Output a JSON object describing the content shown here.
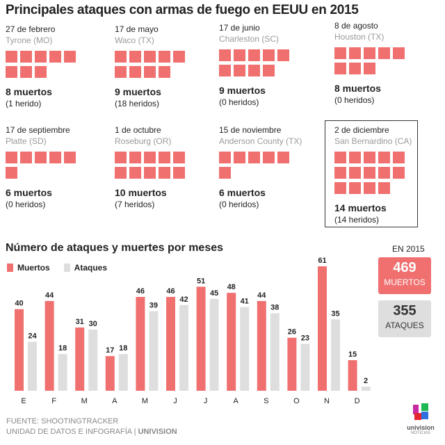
{
  "title": "Principales ataques con armas de fuego en EEUU en 2015",
  "incidents": [
    {
      "date": "27 de febrero",
      "place": "Tyrone (MO)",
      "deaths": 8,
      "deaths_label": "8 muertos",
      "injured_label": "(1 herido)"
    },
    {
      "date": "17 de mayo",
      "place": "Waco (TX)",
      "deaths": 9,
      "deaths_label": "9 muertos",
      "injured_label": "(18 heridos)"
    },
    {
      "date": "17 de junio",
      "place": "Charleston (SC)",
      "deaths": 9,
      "deaths_label": "9 muertos",
      "injured_label": "(0 heridos)"
    },
    {
      "date": "8 de agosto",
      "place": "Houston (TX)",
      "deaths": 8,
      "deaths_label": "8 muertos",
      "injured_label": "(0 heridos)"
    },
    {
      "date": "17 de septiembre",
      "place": "Platte (SD)",
      "deaths": 6,
      "deaths_label": "6 muertos",
      "injured_label": "(0 heridos)"
    },
    {
      "date": "1 de octubre",
      "place": "Roseburg (OR)",
      "deaths": 10,
      "deaths_label": "10 muertos",
      "injured_label": "(7 heridos)"
    },
    {
      "date": "15 de noviembre",
      "place": "Anderson County (TX)",
      "deaths": 6,
      "deaths_label": "6 muertos",
      "injured_label": "(0 heridos)"
    },
    {
      "date": "2 de diciembre",
      "place": "San Bernardino (CA)",
      "deaths": 14,
      "deaths_label": "14 muertos",
      "injured_label": "(14 heridos)"
    }
  ],
  "subtitle": "Número de ataques y muertes por meses",
  "totals": {
    "label": "EN 2015",
    "deaths": "469",
    "deaths_label": "MUERTOS",
    "attacks": "355",
    "attacks_label": "ATAQUES"
  },
  "footer": {
    "source": "FUENTE: SHOOTINGTRACKER",
    "credit": "UNIDAD DE DATOS E INFOGRAFÍA",
    "brand": "UNIVISION"
  },
  "logo": {
    "name": "univision",
    "sub": "NOTICIAS"
  },
  "colors": {
    "muertos": "#f07070",
    "ataques": "#dedede"
  },
  "chart_data": {
    "type": "bar",
    "categories": [
      "E",
      "F",
      "M",
      "A",
      "M",
      "J",
      "J",
      "A",
      "S",
      "O",
      "N",
      "D"
    ],
    "series": [
      {
        "name": "Muertos",
        "values": [
          40,
          44,
          31,
          17,
          46,
          46,
          51,
          48,
          44,
          26,
          61,
          15
        ]
      },
      {
        "name": "Ataques",
        "values": [
          24,
          18,
          30,
          18,
          39,
          42,
          45,
          41,
          38,
          23,
          35,
          2
        ]
      }
    ],
    "legend": "top-left",
    "grid": false,
    "ylim": [
      0,
      61
    ]
  }
}
